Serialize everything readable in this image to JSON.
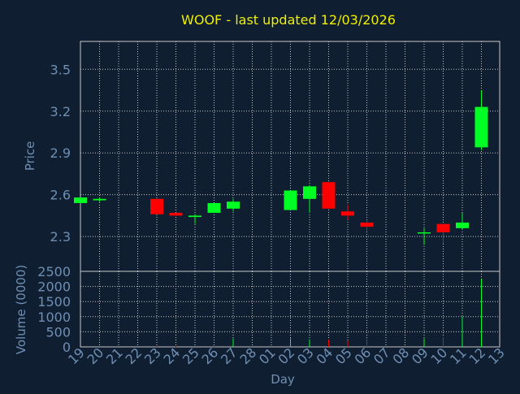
{
  "title": "WOOF - last updated 12/03/2026",
  "colors": {
    "background": "#0f1e30",
    "axis_text": "#6f8fb3",
    "title_text": "#f0f000",
    "grid": "#c8c8c8",
    "up": "#00ff22",
    "down": "#ff0000"
  },
  "chart_data": [
    {
      "type": "candlestick",
      "ylabel": "Price",
      "ylim": [
        2.05,
        3.7
      ],
      "yticks": [
        "3.5",
        "3.2",
        "2.9",
        "2.6",
        "2.3"
      ],
      "ytick_values": [
        3.5,
        3.2,
        2.9,
        2.6,
        2.3
      ],
      "grid": true,
      "x": [
        "19",
        "20",
        "21",
        "22",
        "23",
        "24",
        "25",
        "26",
        "27",
        "28",
        "01",
        "02",
        "03",
        "04",
        "05",
        "06",
        "07",
        "08",
        "09",
        "10",
        "11",
        "12",
        "13"
      ],
      "candles": [
        {
          "day": "19",
          "open": 2.54,
          "close": 2.58,
          "high": 2.58,
          "low": 2.54
        },
        {
          "day": "20",
          "open": 2.56,
          "close": 2.57,
          "high": 2.58,
          "low": 2.55
        },
        {
          "day": "23",
          "open": 2.57,
          "close": 2.46,
          "high": 2.57,
          "low": 2.46
        },
        {
          "day": "24",
          "open": 2.47,
          "close": 2.45,
          "high": 2.47,
          "low": 2.45
        },
        {
          "day": "25",
          "open": 2.44,
          "close": 2.45,
          "high": 2.46,
          "low": 2.39
        },
        {
          "day": "26",
          "open": 2.47,
          "close": 2.54,
          "high": 2.54,
          "low": 2.47
        },
        {
          "day": "27",
          "open": 2.5,
          "close": 2.55,
          "high": 2.57,
          "low": 2.48
        },
        {
          "day": "02",
          "open": 2.49,
          "close": 2.63,
          "high": 2.63,
          "low": 2.49
        },
        {
          "day": "03",
          "open": 2.57,
          "close": 2.66,
          "high": 2.67,
          "low": 2.47
        },
        {
          "day": "04",
          "open": 2.69,
          "close": 2.5,
          "high": 2.69,
          "low": 2.5
        },
        {
          "day": "05",
          "open": 2.48,
          "close": 2.45,
          "high": 2.53,
          "low": 2.42
        },
        {
          "day": "06",
          "open": 2.4,
          "close": 2.37,
          "high": 2.42,
          "low": 2.34
        },
        {
          "day": "09",
          "open": 2.33,
          "close": 2.33,
          "high": 2.36,
          "low": 2.24
        },
        {
          "day": "10",
          "open": 2.39,
          "close": 2.33,
          "high": 2.39,
          "low": 2.25
        },
        {
          "day": "11",
          "open": 2.36,
          "close": 2.4,
          "high": 2.47,
          "low": 2.35
        },
        {
          "day": "12",
          "open": 2.94,
          "close": 3.23,
          "high": 3.35,
          "low": 2.92
        }
      ]
    },
    {
      "type": "bar",
      "ylabel": "Volume (0000)",
      "xlabel": "Day",
      "ylim": [
        0,
        2500
      ],
      "yticks": [
        "2500",
        "2000",
        "1500",
        "1000",
        "500",
        "0"
      ],
      "ytick_values": [
        2500,
        2000,
        1500,
        1000,
        500,
        0
      ],
      "grid": true,
      "bars": [
        {
          "day": "23",
          "value": 20,
          "dir": "down"
        },
        {
          "day": "24",
          "value": 15,
          "dir": "down"
        },
        {
          "day": "26",
          "value": 15,
          "dir": "up"
        },
        {
          "day": "27",
          "value": 280,
          "dir": "up"
        },
        {
          "day": "02",
          "value": 280,
          "dir": "up"
        },
        {
          "day": "03",
          "value": 250,
          "dir": "up"
        },
        {
          "day": "04",
          "value": 240,
          "dir": "down"
        },
        {
          "day": "05",
          "value": 220,
          "dir": "down"
        },
        {
          "day": "06",
          "value": 270,
          "dir": "down"
        },
        {
          "day": "09",
          "value": 280,
          "dir": "up"
        },
        {
          "day": "10",
          "value": 330,
          "dir": "down"
        },
        {
          "day": "11",
          "value": 1000,
          "dir": "up"
        },
        {
          "day": "12",
          "value": 2250,
          "dir": "up"
        }
      ]
    }
  ]
}
